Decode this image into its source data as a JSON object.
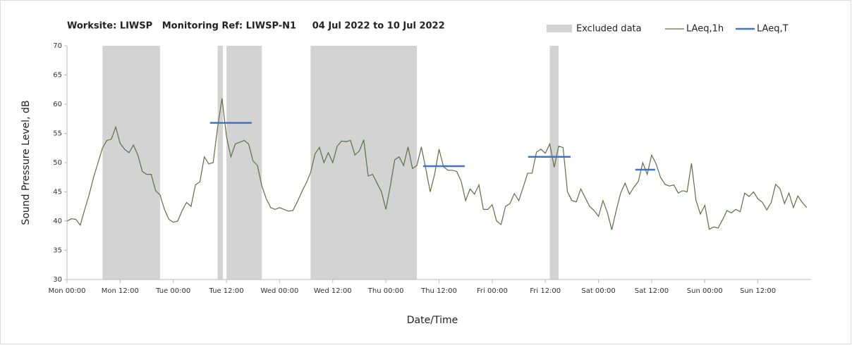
{
  "chart_data": {
    "type": "line",
    "title": "Worksite: LIWSP   Monitoring Ref: LIWSP-N1     04 Jul 2022 to 10 Jul 2022",
    "xlabel": "Date/Time",
    "ylabel": "Sound Pressure Level, dB",
    "xlim": [
      0,
      168
    ],
    "xticks": [
      {
        "value": 0,
        "label": "Mon 00:00"
      },
      {
        "value": 12,
        "label": "Mon 12:00"
      },
      {
        "value": 24,
        "label": "Tue 00:00"
      },
      {
        "value": 36,
        "label": "Tue 12:00"
      },
      {
        "value": 48,
        "label": "Wed 00:00"
      },
      {
        "value": 60,
        "label": "Wed 12:00"
      },
      {
        "value": 72,
        "label": "Thu 00:00"
      },
      {
        "value": 84,
        "label": "Thu 12:00"
      },
      {
        "value": 96,
        "label": "Fri 00:00"
      },
      {
        "value": 108,
        "label": "Fri 12:00"
      },
      {
        "value": 120,
        "label": "Sat 00:00"
      },
      {
        "value": 132,
        "label": "Sat 12:00"
      },
      {
        "value": 144,
        "label": "Sun 00:00"
      },
      {
        "value": 156,
        "label": "Sun 12:00"
      }
    ],
    "ylim": [
      30,
      70
    ],
    "yticks": [
      30,
      35,
      40,
      45,
      50,
      55,
      60,
      65,
      70
    ],
    "x": [
      0,
      1,
      2,
      3,
      4,
      5,
      6,
      7,
      8,
      9,
      10,
      11,
      12,
      13,
      14,
      15,
      16,
      17,
      18,
      19,
      20,
      21,
      22,
      23,
      24,
      25,
      26,
      27,
      28,
      29,
      30,
      31,
      32,
      33,
      34,
      35,
      36,
      37,
      38,
      39,
      40,
      41,
      42,
      43,
      44,
      45,
      46,
      47,
      48,
      49,
      50,
      51,
      52,
      53,
      54,
      55,
      56,
      57,
      58,
      59,
      60,
      61,
      62,
      63,
      64,
      65,
      66,
      67,
      68,
      69,
      70,
      71,
      72,
      73,
      74,
      75,
      76,
      77,
      78,
      79,
      80,
      81,
      82,
      83,
      84,
      85,
      86,
      87,
      88,
      89,
      90,
      91,
      92,
      93,
      94,
      95,
      96,
      97,
      98,
      99,
      100,
      101,
      102,
      103,
      104,
      105,
      106,
      107,
      108,
      109,
      110,
      111,
      112,
      113,
      114,
      115,
      116,
      117,
      118,
      119,
      120,
      121,
      122,
      123,
      124,
      125,
      126,
      127,
      128,
      129,
      130,
      131,
      132,
      133,
      134,
      135,
      136,
      137,
      138,
      139,
      140,
      141,
      142,
      143,
      144,
      145,
      146,
      147,
      148,
      149,
      150,
      151,
      152,
      153,
      154,
      155,
      156,
      157,
      158,
      159,
      160,
      161,
      162,
      163,
      164,
      165,
      166,
      167
    ],
    "series": [
      {
        "name": "LAeq,1h",
        "color": "#5b7045",
        "values": [
          40,
          40.4,
          40.3,
          39.3,
          42,
          44.5,
          47.5,
          50,
          52.5,
          53.8,
          54,
          56.1,
          53.3,
          52.3,
          51.7,
          53,
          51.3,
          48.5,
          48,
          48,
          45.2,
          44.5,
          42,
          40.3,
          39.8,
          40,
          41.8,
          43.2,
          42.5,
          46.2,
          46.7,
          51,
          49.8,
          50,
          56,
          61,
          54.5,
          51,
          53.2,
          53.5,
          53.8,
          53.2,
          50.3,
          49.5,
          46,
          43.8,
          42.3,
          42,
          42.3,
          42,
          41.7,
          41.8,
          43.3,
          45,
          46.5,
          48.3,
          51.5,
          52.6,
          50,
          51.7,
          50,
          52.8,
          53.7,
          53.6,
          53.8,
          51.3,
          52,
          53.9,
          47.7,
          48,
          46.5,
          45,
          42,
          46,
          50.5,
          51,
          49.5,
          52.7,
          49,
          49.5,
          52.7,
          49,
          45,
          48,
          52.3,
          49.3,
          48.7,
          48.7,
          48.5,
          46.8,
          43.5,
          45.5,
          44.6,
          46.2,
          42,
          42,
          42.8,
          40,
          39.4,
          42.5,
          43,
          44.7,
          43.5,
          45.8,
          48.2,
          48.2,
          51.8,
          52.3,
          51.6,
          53.2,
          49.2,
          52.8,
          52.6,
          45,
          43.5,
          43.3,
          45.5,
          44,
          42.5,
          41.8,
          40.8,
          43.5,
          41.5,
          38.5,
          41.8,
          44.8,
          46.5,
          44.6,
          45.8,
          46.8,
          50,
          48,
          51.3,
          49.8,
          47.5,
          46.3,
          46,
          46.2,
          44.8,
          45.2,
          45,
          49.9,
          43.6,
          41.2,
          42.7,
          38.6,
          39,
          38.8,
          40.2,
          41.8,
          41.4,
          42,
          41.6,
          44.8,
          44.2,
          45,
          43.8,
          43.2,
          41.9,
          43.2,
          46.3,
          45.5,
          43,
          44.8,
          42.3,
          44.3,
          43.2,
          42.3
        ]
      }
    ],
    "excluded": {
      "name": "Excluded data",
      "color": "#d3d3d3",
      "ranges": [
        [
          8,
          21
        ],
        [
          34,
          35.2
        ],
        [
          36,
          44
        ],
        [
          55,
          79
        ],
        [
          109,
          111
        ]
      ]
    },
    "segments": {
      "name": "LAeq,T",
      "color": "#4472c4",
      "items": [
        {
          "start": 32.3,
          "end": 41.7,
          "value": 56.8
        },
        {
          "start": 80.4,
          "end": 89.8,
          "value": 49.4
        },
        {
          "start": 104.1,
          "end": 113.7,
          "value": 51
        },
        {
          "start": 128.3,
          "end": 132.8,
          "value": 48.8
        }
      ]
    },
    "legend": "top-right"
  }
}
